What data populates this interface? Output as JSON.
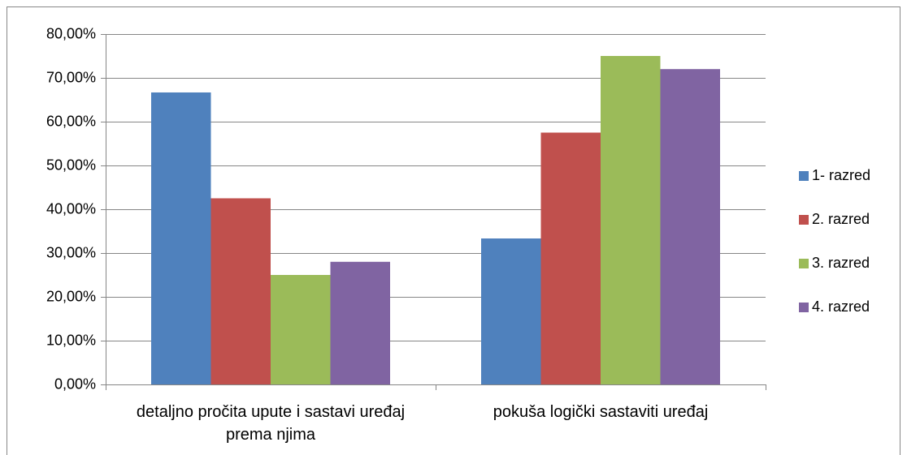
{
  "chart_data": {
    "type": "bar",
    "categories": [
      "detaljno pročita upute i sastavi uređaj prema njima",
      "pokuša logički sastaviti uređaj"
    ],
    "series": [
      {
        "name": "1- razred",
        "color": "#4f81bd",
        "values": [
          66.67,
          33.33
        ]
      },
      {
        "name": "2. razred",
        "color": "#c0504d",
        "values": [
          42.5,
          57.5
        ]
      },
      {
        "name": "3. razred",
        "color": "#9bbb59",
        "values": [
          25,
          75
        ]
      },
      {
        "name": "4. razred",
        "color": "#8064a2",
        "values": [
          28,
          72
        ]
      }
    ],
    "ylim": [
      0,
      80
    ],
    "yticks": [
      {
        "value": 0,
        "label": "0,00%"
      },
      {
        "value": 10,
        "label": "10,00%"
      },
      {
        "value": 20,
        "label": "20,00%"
      },
      {
        "value": 30,
        "label": "30,00%"
      },
      {
        "value": 40,
        "label": "40,00%"
      },
      {
        "value": 50,
        "label": "50,00%"
      },
      {
        "value": 60,
        "label": "60,00%"
      },
      {
        "value": 70,
        "label": "70,00%"
      },
      {
        "value": 80,
        "label": "80,00%"
      }
    ],
    "grid": true,
    "legend": "right"
  }
}
